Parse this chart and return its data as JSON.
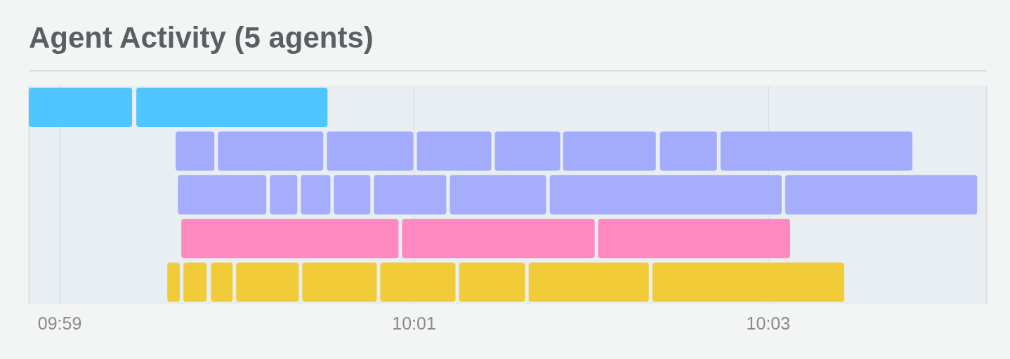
{
  "chart_data": {
    "type": "bar",
    "orientation": "horizontal",
    "title": "Agent Activity (5 agents)",
    "categories": [
      null,
      null,
      null,
      null,
      null
    ],
    "xlim": [
      9.98042,
      10.07056
    ],
    "xticks": [
      {
        "value": 9.98333,
        "label": "09:59"
      },
      {
        "value": 10.01667,
        "label": "10:01"
      },
      {
        "value": 10.05,
        "label": "10:03"
      }
    ],
    "grid": "x",
    "series": [
      {
        "base": [
          9.98042,
          9.99424,
          9.99444,
          9.99477,
          9.99345
        ],
        "values": [
          0.00972,
          0.00364,
          0.00833,
          0.02044,
          0.00119
        ],
        "colors": [
          "#4fc6fd",
          "#a3acfc",
          "#a6adfc",
          "#fe89c1",
          "#f2cc38"
        ]
      },
      {
        "base": [
          9.99054,
          9.99821,
          10.00311,
          10.01554,
          9.99497
        ],
        "values": [
          0.01799,
          0.00992,
          0.00258,
          0.01812,
          0.00218
        ],
        "colors": [
          "#4fc6fd",
          "#a3acfc",
          "#a6adfc",
          "#fe89c1",
          "#f2cc38"
        ]
      },
      {
        "base": [
          null,
          10.00846,
          10.00602,
          10.03399,
          9.99755
        ],
        "values": [
          null,
          0.00814,
          0.00278,
          0.01806,
          0.00205
        ],
        "colors": [
          "#4fc6fd",
          "#a3acfc",
          "#a6adfc",
          "#fe89c1",
          "#f2cc38"
        ]
      },
      {
        "base": [
          null,
          10.01693,
          10.00912,
          null,
          9.99993
        ],
        "values": [
          null,
          0.00701,
          0.00344,
          null,
          0.00589
        ],
        "colors": [
          "#4fc6fd",
          "#a3acfc",
          "#a6adfc",
          "#fe89c1",
          "#f2cc38"
        ]
      },
      {
        "base": [
          null,
          10.02427,
          10.01289,
          null,
          10.00615
        ],
        "values": [
          null,
          0.00615,
          0.00681,
          null,
          0.00701
        ],
        "colors": [
          "#4fc6fd",
          "#a3acfc",
          "#a6adfc",
          "#fe89c1",
          "#f2cc38"
        ]
      },
      {
        "base": [
          null,
          10.03069,
          10.02004,
          null,
          10.01349
        ],
        "values": [
          null,
          0.00873,
          0.00906,
          null,
          0.00708
        ],
        "colors": [
          "#4fc6fd",
          "#a3acfc",
          "#a6adfc",
          "#fe89c1",
          "#f2cc38"
        ]
      },
      {
        "base": [
          null,
          10.03981,
          10.02943,
          null,
          10.0209
        ],
        "values": [
          null,
          0.00536,
          0.02183,
          null,
          0.00622
        ],
        "colors": [
          "#4fc6fd",
          "#a3acfc",
          "#a6adfc",
          "#fe89c1",
          "#f2cc38"
        ]
      },
      {
        "base": [
          null,
          10.0455,
          10.05159,
          null,
          10.02745
        ],
        "values": [
          null,
          0.01806,
          0.01806,
          null,
          0.01131
        ],
        "colors": [
          "#4fc6fd",
          "#a3acfc",
          "#a6adfc",
          "#fe89c1",
          "#f2cc38"
        ]
      },
      {
        "base": [
          null,
          null,
          null,
          null,
          10.03909
        ],
        "values": [
          null,
          null,
          null,
          null,
          0.01806
        ],
        "colors": [
          "#4fc6fd",
          "#a3acfc",
          "#a6adfc",
          "#fe89c1",
          "#f2cc38"
        ]
      }
    ]
  }
}
